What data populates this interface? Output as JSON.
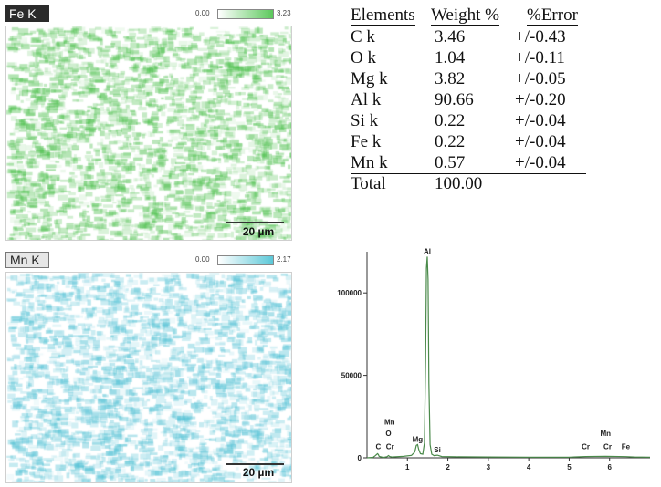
{
  "maps": [
    {
      "label": "Fe K",
      "scale_min": "0.00",
      "scale_max": "3.23",
      "scale_bar": "20 µm",
      "color": "#4cc04c"
    },
    {
      "label": "Mn K",
      "scale_min": "0.00",
      "scale_max": "2.17",
      "scale_bar": "20 µm",
      "color": "#56c3d6"
    }
  ],
  "table": {
    "headers": [
      "Elements",
      "Weight %",
      "%Error"
    ],
    "rows": [
      [
        "C k",
        "3.46",
        "+/-0.43"
      ],
      [
        "O k",
        "1.04",
        "+/-0.11"
      ],
      [
        "Mg k",
        "3.82",
        "+/-0.05"
      ],
      [
        "Al k",
        "90.66",
        "+/-0.20"
      ],
      [
        "Si k",
        "0.22",
        "+/-0.04"
      ],
      [
        "Fe k",
        "0.22",
        "+/-0.04"
      ],
      [
        "Mn k",
        "0.57",
        "+/-0.04"
      ]
    ],
    "total": [
      "Total",
      "100.00"
    ]
  },
  "chart_data": {
    "type": "line",
    "title": "",
    "xlabel": "",
    "ylabel": "",
    "xlim": [
      0,
      7
    ],
    "ylim": [
      0,
      125000
    ],
    "xticks": [
      1,
      2,
      3,
      4,
      5,
      6
    ],
    "yticks": [
      0,
      50000,
      100000
    ],
    "grid": false,
    "series": [
      {
        "color": "#4a8a4a",
        "x": [
          0.0,
          0.15,
          0.2,
          0.26,
          0.28,
          0.3,
          0.36,
          0.42,
          0.5,
          0.53,
          0.56,
          0.62,
          0.7,
          0.9,
          1.1,
          1.18,
          1.22,
          1.25,
          1.28,
          1.32,
          1.38,
          1.42,
          1.45,
          1.47,
          1.49,
          1.51,
          1.53,
          1.56,
          1.6,
          1.66,
          1.74,
          1.85,
          2.2,
          3.0,
          4.0,
          5.0,
          5.41,
          5.9,
          6.4,
          6.6,
          7.0
        ],
        "y": [
          0,
          300,
          1200,
          2500,
          2000,
          900,
          500,
          300,
          700,
          1400,
          800,
          500,
          600,
          900,
          1500,
          3500,
          7500,
          8000,
          5000,
          2500,
          2200,
          9000,
          60000,
          115000,
          122000,
          108000,
          45000,
          8000,
          2200,
          1300,
          1600,
          800,
          600,
          500,
          400,
          400,
          800,
          900,
          700,
          500,
          400
        ]
      }
    ],
    "peak_labels": [
      {
        "text": "Al",
        "x": 1.49,
        "y": 122000
      },
      {
        "text": "Mg",
        "x": 1.25,
        "y": 8000
      },
      {
        "text": "Si",
        "x": 1.74,
        "y": 1600
      },
      {
        "text": "Mn",
        "x": 0.56,
        "y": 18500
      },
      {
        "text": "O",
        "x": 0.53,
        "y": 11500
      },
      {
        "text": "Cr",
        "x": 0.57,
        "y": 3500
      },
      {
        "text": "C",
        "x": 0.28,
        "y": 3500
      },
      {
        "text": "Cr",
        "x": 5.41,
        "y": 3500
      },
      {
        "text": "Mn",
        "x": 5.9,
        "y": 11500
      },
      {
        "text": "Cr",
        "x": 5.95,
        "y": 3500
      },
      {
        "text": "Fe",
        "x": 6.4,
        "y": 3500
      }
    ]
  }
}
